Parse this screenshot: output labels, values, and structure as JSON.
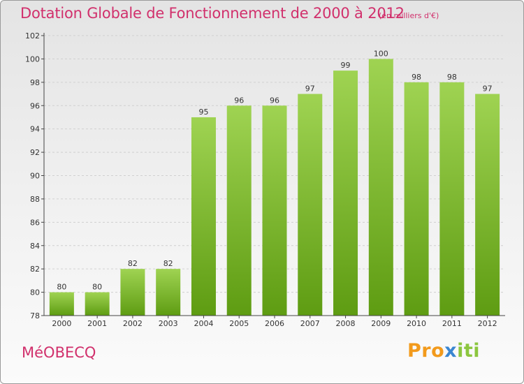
{
  "title": "Dotation Globale de Fonctionnement de 2000 à 2012",
  "subtitle": "(en milliers d'€)",
  "commune": "MéOBECQ",
  "logo": {
    "part1": "Pro",
    "part2": "x",
    "part3": "iti"
  },
  "colors": {
    "title": "#d1306c",
    "bar_top": "#9fd352",
    "bar_bottom": "#5e9c12",
    "axis": "#444444",
    "grid": "#d0d0d0"
  },
  "chart_data": {
    "type": "bar",
    "categories": [
      "2000",
      "2001",
      "2002",
      "2003",
      "2004",
      "2005",
      "2006",
      "2007",
      "2008",
      "2009",
      "2010",
      "2011",
      "2012"
    ],
    "values": [
      80,
      80,
      82,
      82,
      95,
      96,
      96,
      97,
      99,
      100,
      98,
      98,
      97
    ],
    "ylim": [
      78,
      102
    ],
    "yticks": [
      78,
      80,
      82,
      84,
      86,
      88,
      90,
      92,
      94,
      96,
      98,
      100,
      102
    ],
    "grid": true,
    "data_labels": true
  }
}
